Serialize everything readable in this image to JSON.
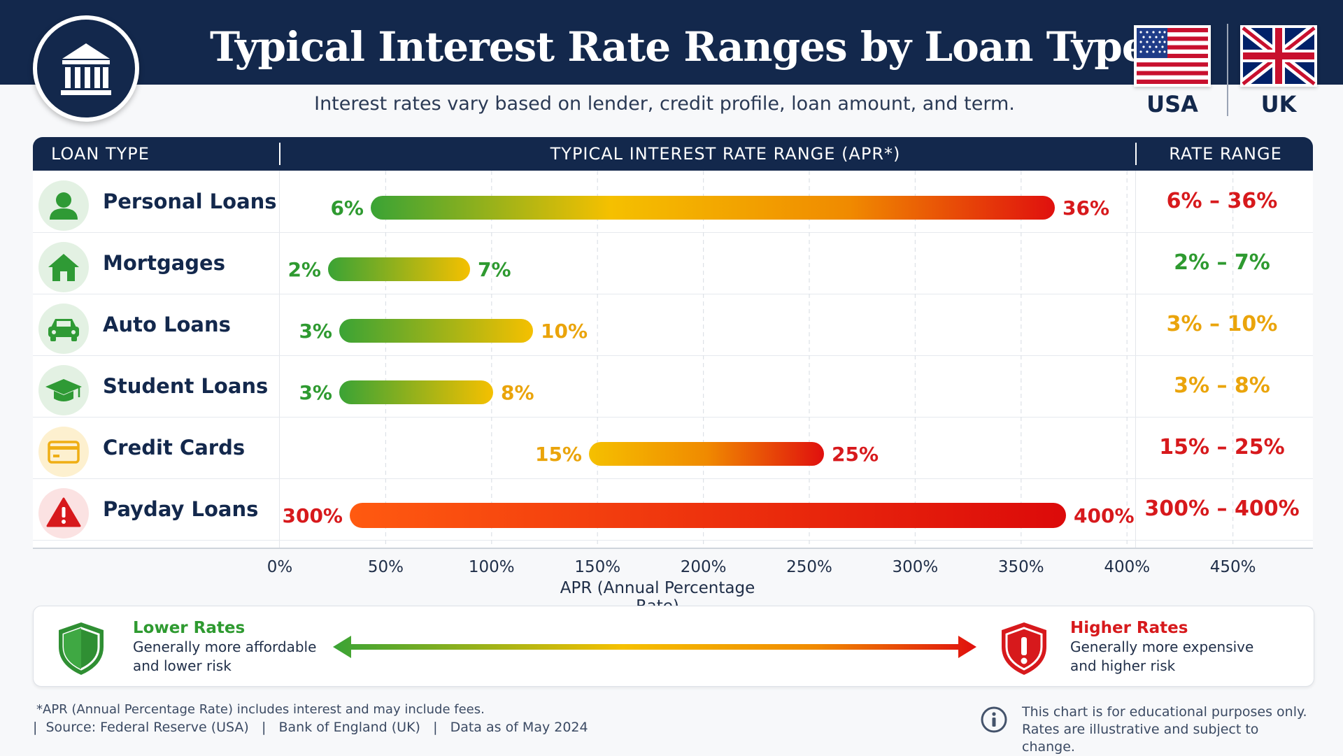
{
  "header": {
    "title": "Typical Interest Rate Ranges by Loan Type",
    "subtitle": "Interest rates vary based on lender, credit profile, loan amount, and term.",
    "flags": [
      {
        "label": "USA",
        "icon": "us-flag-icon"
      },
      {
        "label": "UK",
        "icon": "uk-flag-icon"
      }
    ],
    "logo_icon": "bank-icon"
  },
  "table": {
    "columns": [
      "LOAN TYPE",
      "TYPICAL INTEREST RATE RANGE (APR*)",
      "RATE RANGE"
    ],
    "rows": [
      {
        "label": "Personal Loans",
        "icon": "person-icon",
        "range_text": "6% – 36%"
      },
      {
        "label": "Mortgages",
        "icon": "home-icon",
        "range_text": "2% – 7%"
      },
      {
        "label": "Auto Loans",
        "icon": "car-icon",
        "range_text": "3% – 10%"
      },
      {
        "label": "Student Loans",
        "icon": "graduation-cap-icon",
        "range_text": "3% – 8%"
      },
      {
        "label": "Credit Cards",
        "icon": "credit-card-icon",
        "range_text": "15% – 25%"
      },
      {
        "label": "Payday Loans",
        "icon": "warning-icon",
        "range_text": "300% – 400%"
      }
    ]
  },
  "chart_data": {
    "type": "bar",
    "orientation": "horizontal-range",
    "xlabel": "APR (Annual Percentage Rate)",
    "xlim": [
      0,
      450
    ],
    "x_ticks": [
      "0%",
      "50%",
      "100%",
      "150%",
      "200%",
      "250%",
      "300%",
      "350%",
      "400%",
      "450%"
    ],
    "grid": "vertical dashed",
    "categories": [
      "Personal Loans",
      "Mortgages",
      "Auto Loans",
      "Student Loans",
      "Credit Cards",
      "Payday Loans"
    ],
    "ranges": [
      {
        "category": "Personal Loans",
        "low": 6,
        "high": 36,
        "low_label": "6%",
        "high_label": "36%"
      },
      {
        "category": "Mortgages",
        "low": 2,
        "high": 7,
        "low_label": "2%",
        "high_label": "7%"
      },
      {
        "category": "Auto Loans",
        "low": 3,
        "high": 10,
        "low_label": "3%",
        "high_label": "10%"
      },
      {
        "category": "Student Loans",
        "low": 3,
        "high": 8,
        "low_label": "3%",
        "high_label": "8%"
      },
      {
        "category": "Credit Cards",
        "low": 15,
        "high": 25,
        "low_label": "15%",
        "high_label": "25%"
      },
      {
        "category": "Payday Loans",
        "low": 300,
        "high": 400,
        "low_label": "300%",
        "high_label": "400%"
      }
    ]
  },
  "colors": {
    "navy": "#13284c",
    "green": "#3aa335",
    "yellow": "#f5c000",
    "orange": "#f08a00",
    "red": "#e0100e",
    "text_green": "#2e9a30",
    "text_amber": "#eaa40b",
    "text_red": "#d7191c"
  },
  "legend": {
    "low": {
      "title": "Lower Rates",
      "text": "Generally more affordable and lower risk",
      "icon": "shield-check-icon"
    },
    "high": {
      "title": "Higher Rates",
      "text": "Generally more expensive and higher risk",
      "icon": "shield-alert-icon"
    },
    "arrow_icon": "double-arrow-icon"
  },
  "footer": {
    "footnote": "*APR (Annual Percentage Rate) includes interest and may include fees.",
    "sources": "|  Source: Federal Reserve (USA)   |   Bank of England (UK)   |   Data as of May 2024",
    "disclaimer": "This chart is for educational purposes only. Rates are illustrative and subject to change.",
    "info_icon": "info-icon"
  }
}
